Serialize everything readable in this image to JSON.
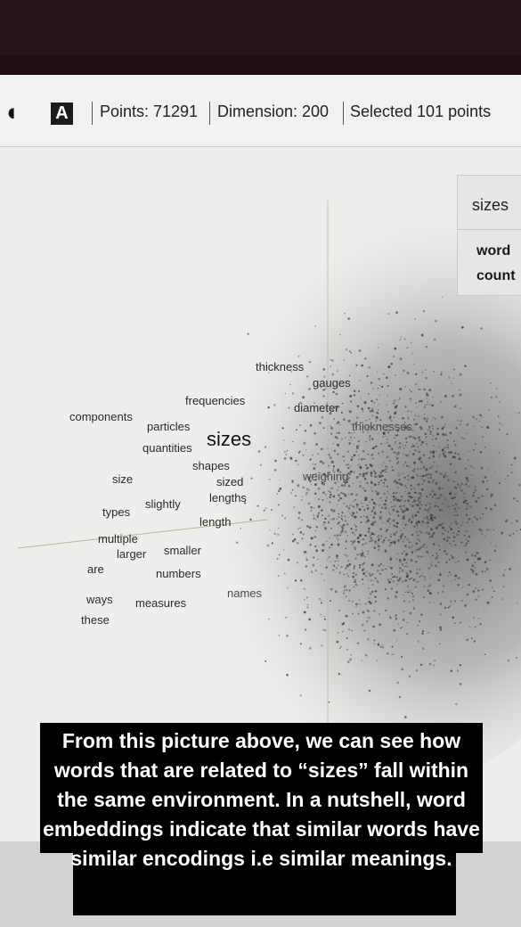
{
  "toolbar": {
    "dark_mode_icon": "moon-icon",
    "label_mode_button": "A",
    "points": "Points: 71291",
    "dimension": "Dimension: 200",
    "selected": "Selected 101 points"
  },
  "side_panel": {
    "search_value": "sizes",
    "column_labels": [
      "word",
      "count"
    ]
  },
  "plot_words": [
    "thickness",
    "gauges",
    "frequencies",
    "diameter",
    "components",
    "particles",
    "thicknesses",
    "sizes",
    "quantities",
    "shapes",
    "weighing",
    "size",
    "sized",
    "lengths",
    "slightly",
    "types",
    "length",
    "multiple",
    "larger",
    "smaller",
    "are",
    "numbers",
    "names",
    "ways",
    "measures",
    "these"
  ],
  "caption": "From this picture above, we can see how words that are related to “sizes” fall within the same environment. In a nutshell, word embeddings indicate that similar words have similar encodings i.e similar meanings.",
  "colors": {
    "top_bar": "#2a1219",
    "screen_bg": "#eeeeed",
    "caption_bg": "#000000",
    "caption_text": "#ffffff",
    "points": "#3a3a3a"
  }
}
